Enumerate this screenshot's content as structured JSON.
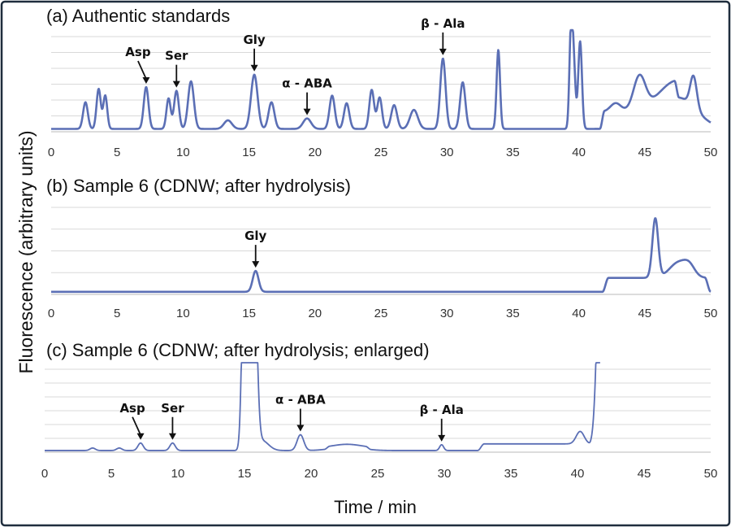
{
  "figure": {
    "y_axis_label": "Fluorescence (arbitrary units)",
    "x_axis_label": "Time / min",
    "colors": {
      "trace": "#5b6fb5",
      "frame": "#1f2d3d",
      "grid": "#d9d9d9"
    }
  },
  "chart_data": [
    {
      "type": "line",
      "title": "(a) Authentic standards",
      "xlabel": "Time / min",
      "ylabel": "Fluorescence (arbitrary units)",
      "xlim": [
        0,
        50
      ],
      "ylim": [
        0,
        10
      ],
      "xticks": [
        "0",
        "5",
        "10",
        "15",
        "20",
        "25",
        "30",
        "35",
        "40",
        "45",
        "50"
      ],
      "grid_lines": 6,
      "baseline": 0.3,
      "peaks": [
        [
          2.6,
          2.8,
          0.18
        ],
        [
          3.6,
          4.2,
          0.16
        ],
        [
          4.1,
          3.5,
          0.15
        ],
        [
          7.2,
          4.4,
          0.18
        ],
        [
          8.9,
          3.2,
          0.16
        ],
        [
          9.5,
          4.0,
          0.18
        ],
        [
          10.6,
          5.0,
          0.22
        ],
        [
          13.4,
          0.9,
          0.3
        ],
        [
          15.4,
          5.7,
          0.25
        ],
        [
          16.7,
          2.8,
          0.22
        ],
        [
          19.4,
          1.1,
          0.3
        ],
        [
          21.3,
          3.5,
          0.2
        ],
        [
          22.4,
          2.7,
          0.2
        ],
        [
          24.3,
          4.1,
          0.18
        ],
        [
          24.9,
          3.3,
          0.18
        ],
        [
          26.0,
          2.5,
          0.22
        ],
        [
          27.5,
          2.0,
          0.3
        ],
        [
          29.7,
          7.4,
          0.2
        ],
        [
          31.2,
          4.9,
          0.2
        ],
        [
          33.9,
          8.3,
          0.13
        ],
        [
          39.4,
          9.1,
          0.12
        ],
        [
          39.6,
          7.0,
          0.14
        ],
        [
          40.1,
          9.2,
          0.14
        ],
        [
          42.8,
          0.9,
          0.4
        ],
        [
          44.6,
          3.5,
          0.45
        ],
        [
          47.5,
          3.3,
          1.4
        ],
        [
          48.7,
          3.3,
          0.25
        ]
      ],
      "plateaus": [
        [
          41.6,
          47.6,
          1.8,
          0.35
        ]
      ],
      "annotations": [
        {
          "label": "Asp",
          "x": 7.2
        },
        {
          "label": "Ser",
          "x": 9.5
        },
        {
          "label": "Gly",
          "x": 15.4
        },
        {
          "label": "α - ABA",
          "x": 19.4
        },
        {
          "label": "β - Ala",
          "x": 29.7
        }
      ]
    },
    {
      "type": "line",
      "title": "(b) Sample 6 (CDNW; after hydrolysis)",
      "xlabel": "Time / min",
      "ylabel": "Fluorescence (arbitrary units)",
      "xlim": [
        0,
        50
      ],
      "ylim": [
        0,
        10
      ],
      "xticks": [
        "0",
        "5",
        "10",
        "15",
        "20",
        "25",
        "30",
        "35",
        "40",
        "45",
        "50"
      ],
      "grid_lines": 4,
      "baseline": 0.3,
      "peaks": [
        [
          15.5,
          2.4,
          0.22
        ],
        [
          45.8,
          6.8,
          0.22
        ],
        [
          47.6,
          1.8,
          0.7
        ],
        [
          48.4,
          0.9,
          0.4
        ]
      ],
      "plateaus": [
        [
          41.8,
          50.0,
          1.6,
          0.45
        ]
      ],
      "annotations": [
        {
          "label": "Gly",
          "x": 15.5
        }
      ]
    },
    {
      "type": "line",
      "title": "(c) Sample 6 (CDNW; after hydrolysis; enlarged)",
      "xlabel": "Time / min",
      "ylabel": "Fluorescence (arbitrary units)",
      "xlim": [
        0,
        50
      ],
      "ylim": [
        0,
        10
      ],
      "xticks": [
        "0",
        "5",
        "10",
        "15",
        "20",
        "25",
        "30",
        "35",
        "40",
        "45",
        "50"
      ],
      "grid_lines": 6,
      "baseline": 0.2,
      "peaks": [
        [
          3.6,
          0.3,
          0.2
        ],
        [
          5.6,
          0.3,
          0.2
        ],
        [
          7.2,
          0.9,
          0.2
        ],
        [
          9.6,
          0.9,
          0.2
        ],
        [
          15.0,
          26.0,
          0.18
        ],
        [
          15.7,
          24.0,
          0.22
        ],
        [
          16.3,
          1.2,
          0.5
        ],
        [
          19.2,
          1.9,
          0.25
        ],
        [
          22.7,
          0.45,
          1.1
        ],
        [
          29.8,
          0.7,
          0.15
        ],
        [
          40.2,
          1.5,
          0.3
        ]
      ],
      "plateaus": [
        [
          21.0,
          24.5,
          0.3,
          0.4
        ],
        [
          32.5,
          41.5,
          0.8,
          0.5
        ]
      ],
      "rise": {
        "start": 40.8,
        "end": 41.7
      },
      "annotations": [
        {
          "label": "Asp",
          "x": 7.2
        },
        {
          "label": "Ser",
          "x": 9.6
        },
        {
          "label": "α - ABA",
          "x": 19.2
        },
        {
          "label": "β - Ala",
          "x": 29.8
        }
      ]
    }
  ]
}
